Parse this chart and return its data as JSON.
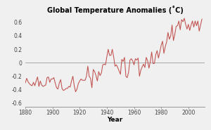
{
  "title": "Global Temperature Anomalies (˚C)",
  "xlabel": "Year",
  "xlim": [
    1880,
    2012
  ],
  "ylim": [
    -0.65,
    0.7
  ],
  "yticks": [
    -0.6,
    -0.4,
    -0.2,
    0,
    0.2,
    0.4,
    0.6
  ],
  "xticks": [
    1880,
    1900,
    1920,
    1940,
    1960,
    1980,
    2000
  ],
  "line_color": "#c0504d",
  "bg_color": "#f0f0f0",
  "title_fontsize": 7.0,
  "tick_fontsize": 5.5,
  "xlabel_fontsize": 6.5,
  "years": [
    1880,
    1881,
    1882,
    1883,
    1884,
    1885,
    1886,
    1887,
    1888,
    1889,
    1890,
    1891,
    1892,
    1893,
    1894,
    1895,
    1896,
    1897,
    1898,
    1899,
    1900,
    1901,
    1902,
    1903,
    1904,
    1905,
    1906,
    1907,
    1908,
    1909,
    1910,
    1911,
    1912,
    1913,
    1914,
    1915,
    1916,
    1917,
    1918,
    1919,
    1920,
    1921,
    1922,
    1923,
    1924,
    1925,
    1926,
    1927,
    1928,
    1929,
    1930,
    1931,
    1932,
    1933,
    1934,
    1935,
    1936,
    1937,
    1938,
    1939,
    1940,
    1941,
    1942,
    1943,
    1944,
    1945,
    1946,
    1947,
    1948,
    1949,
    1950,
    1951,
    1952,
    1953,
    1954,
    1955,
    1956,
    1957,
    1958,
    1959,
    1960,
    1961,
    1962,
    1963,
    1964,
    1965,
    1966,
    1967,
    1968,
    1969,
    1970,
    1971,
    1972,
    1973,
    1974,
    1975,
    1976,
    1977,
    1978,
    1979,
    1980,
    1981,
    1982,
    1983,
    1984,
    1985,
    1986,
    1987,
    1988,
    1989,
    1990,
    1991,
    1992,
    1993,
    1994,
    1995,
    1996,
    1997,
    1998,
    1999,
    2000,
    2001,
    2002,
    2003,
    2004,
    2005,
    2006,
    2007,
    2008,
    2009,
    2010
  ],
  "anomalies": [
    -0.3,
    -0.23,
    -0.28,
    -0.31,
    -0.33,
    -0.34,
    -0.29,
    -0.34,
    -0.27,
    -0.21,
    -0.35,
    -0.27,
    -0.33,
    -0.35,
    -0.34,
    -0.33,
    -0.22,
    -0.21,
    -0.29,
    -0.24,
    -0.24,
    -0.22,
    -0.3,
    -0.37,
    -0.39,
    -0.3,
    -0.25,
    -0.38,
    -0.41,
    -0.4,
    -0.38,
    -0.38,
    -0.35,
    -0.36,
    -0.27,
    -0.2,
    -0.34,
    -0.43,
    -0.39,
    -0.31,
    -0.27,
    -0.24,
    -0.26,
    -0.26,
    -0.26,
    -0.2,
    -0.05,
    -0.2,
    -0.23,
    -0.37,
    -0.1,
    -0.13,
    -0.19,
    -0.27,
    -0.13,
    -0.19,
    -0.15,
    -0.03,
    -0.02,
    -0.03,
    0.09,
    0.2,
    0.11,
    0.11,
    0.2,
    0.09,
    -0.05,
    -0.03,
    -0.07,
    -0.12,
    -0.17,
    0.05,
    0.02,
    0.08,
    -0.2,
    -0.22,
    -0.14,
    0.04,
    0.06,
    0.03,
    -0.03,
    0.06,
    0.04,
    0.07,
    -0.2,
    -0.11,
    -0.06,
    -0.02,
    -0.07,
    0.08,
    0.03,
    -0.08,
    0.02,
    0.16,
    -0.01,
    -0.01,
    0.12,
    0.18,
    0.07,
    0.16,
    0.26,
    0.32,
    0.14,
    0.24,
    0.31,
    0.45,
    0.35,
    0.4,
    0.56,
    0.33,
    0.42,
    0.54,
    0.55,
    0.62,
    0.49,
    0.64,
    0.61,
    0.66,
    0.57,
    0.5,
    0.57,
    0.48,
    0.56,
    0.62,
    0.53,
    0.62,
    0.55,
    0.62,
    0.47,
    0.56,
    0.65
  ]
}
